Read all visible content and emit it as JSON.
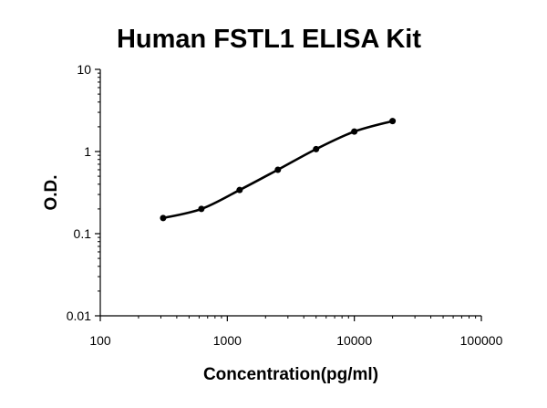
{
  "chart_data": {
    "type": "scatter",
    "title": "Human FSTL1 ELISA Kit",
    "xlabel": "Concentration(pg/ml)",
    "ylabel": "O.D.",
    "x_scale": "log",
    "y_scale": "log",
    "xlim": [
      100,
      100000
    ],
    "ylim": [
      0.01,
      10
    ],
    "x_ticks": [
      "100",
      "1000",
      "10000",
      "100000"
    ],
    "y_ticks": [
      "0.01",
      "0.1",
      "1",
      "10"
    ],
    "grid": false,
    "legend": "none",
    "fit_curve": true,
    "series": [
      {
        "x": [
          312.5,
          625,
          1250,
          2500,
          5000,
          10000,
          20000
        ],
        "y": [
          0.155,
          0.2,
          0.34,
          0.6,
          1.07,
          1.75,
          2.35
        ]
      }
    ],
    "colors": {
      "points": "#000000",
      "curve": "#000000",
      "axes": "#000000"
    }
  }
}
